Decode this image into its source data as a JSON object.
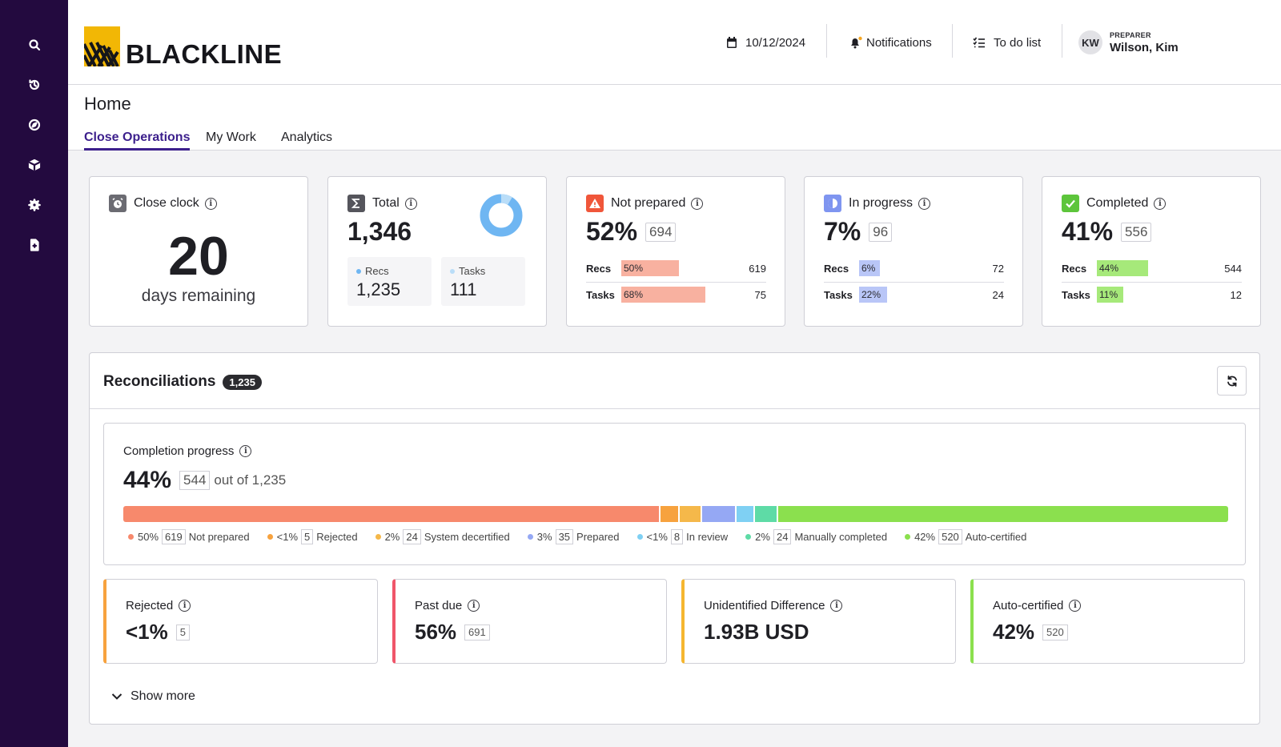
{
  "sidebar": {
    "icons": [
      "search-icon",
      "history-icon",
      "compass-icon",
      "cube-icon",
      "gear-icon",
      "document-icon"
    ]
  },
  "header": {
    "logo_text": "BLACKLINE",
    "date": "10/12/2024",
    "notifications_label": "Notifications",
    "todo_label": "To do list",
    "user_initials": "KW",
    "user_role": "PREPARER",
    "user_name": "Wilson, Kim"
  },
  "page": {
    "title": "Home",
    "tabs": [
      {
        "label": "Close Operations",
        "active": true
      },
      {
        "label": "My Work",
        "active": false
      },
      {
        "label": "Analytics",
        "active": false
      }
    ]
  },
  "summary": {
    "close_clock": {
      "title": "Close clock",
      "days": "20",
      "sub": "days remaining"
    },
    "total": {
      "title": "Total",
      "value": "1,346",
      "recs_label": "Recs",
      "recs_value": "1,235",
      "tasks_label": "Tasks",
      "tasks_value": "111"
    },
    "not_prepared": {
      "title": "Not prepared",
      "pct": "52%",
      "count": "694",
      "recs_label": "Recs",
      "recs_pct": "50%",
      "recs_count": "619",
      "tasks_label": "Tasks",
      "tasks_pct": "68%",
      "tasks_count": "75"
    },
    "in_progress": {
      "title": "In progress",
      "pct": "7%",
      "count": "96",
      "recs_label": "Recs",
      "recs_pct": "6%",
      "recs_count": "72",
      "tasks_label": "Tasks",
      "tasks_pct": "22%",
      "tasks_count": "24"
    },
    "completed": {
      "title": "Completed",
      "pct": "41%",
      "count": "556",
      "recs_label": "Recs",
      "recs_pct": "44%",
      "recs_count": "544",
      "tasks_label": "Tasks",
      "tasks_pct": "11%",
      "tasks_count": "12"
    }
  },
  "reconciliations": {
    "title": "Reconciliations",
    "count": "1,235",
    "progress": {
      "title": "Completion progress",
      "pct": "44%",
      "count": "544",
      "of_text": "out of 1,235",
      "segments": [
        {
          "pct": "50%",
          "count": "619",
          "label": "Not prepared",
          "color": "#f7896c",
          "share": 50
        },
        {
          "pct": "<1%",
          "count": "5",
          "label": "Rejected",
          "color": "#f7a23e",
          "share": 1.6
        },
        {
          "pct": "2%",
          "count": "24",
          "label": "System decertified",
          "color": "#f5b84a",
          "share": 2
        },
        {
          "pct": "3%",
          "count": "35",
          "label": "Prepared",
          "color": "#95a8f4",
          "share": 3
        },
        {
          "pct": "<1%",
          "count": "8",
          "label": "In review",
          "color": "#7fd0f3",
          "share": 1.6
        },
        {
          "pct": "2%",
          "count": "24",
          "label": "Manually completed",
          "color": "#5edba6",
          "share": 2
        },
        {
          "pct": "42%",
          "count": "520",
          "label": "Auto-certified",
          "color": "#8be04e",
          "share": 42
        }
      ]
    },
    "kpis": [
      {
        "title": "Rejected",
        "value": "<1%",
        "count": "5",
        "color": "#f7a23e"
      },
      {
        "title": "Past due",
        "value": "56%",
        "count": "691",
        "color": "#f0566a"
      },
      {
        "title": "Unidentified Difference",
        "value": "1.93B USD",
        "count": "",
        "color": "#f5b630"
      },
      {
        "title": "Auto-certified",
        "value": "42%",
        "count": "520",
        "color": "#8be04e"
      }
    ],
    "show_more": "Show more"
  }
}
